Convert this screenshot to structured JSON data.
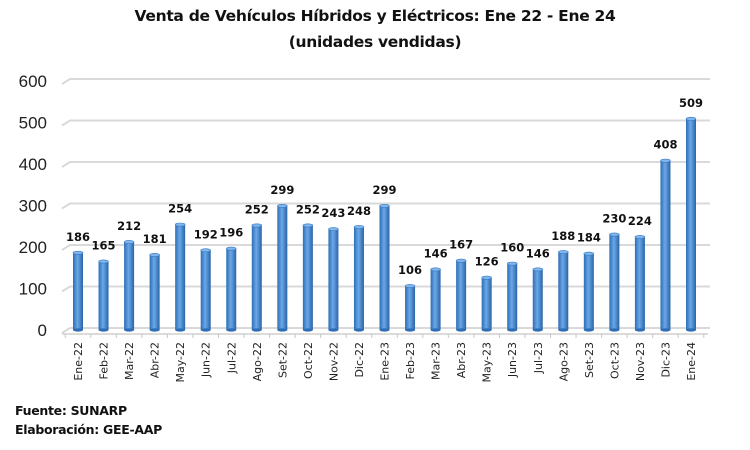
{
  "chart_data": {
    "type": "bar",
    "title": "Venta de Vehículos Híbridos y Eléctricos: Ene 22 - Ene 24",
    "subtitle": "(unidades vendidas)",
    "xlabel": "",
    "ylabel": "",
    "ylim": [
      0,
      600
    ],
    "yticks": [
      "0",
      "100",
      "200",
      "300",
      "400",
      "500",
      "600"
    ],
    "grid": true,
    "legend": "none",
    "bar_color": "#4a8fd6",
    "categories": [
      "Ene-22",
      "Feb-22",
      "Mar-22",
      "Abr-22",
      "May-22",
      "Jun-22",
      "Jul-22",
      "Ago-22",
      "Set-22",
      "Oct-22",
      "Nov-22",
      "Dic-22",
      "Ene-23",
      "Feb-23",
      "Mar-23",
      "Abr-23",
      "May-23",
      "Jun-23",
      "Jul-23",
      "Ago-23",
      "Set-23",
      "Oct-23",
      "Nov-23",
      "Dic-23",
      "Ene-24"
    ],
    "values": [
      186,
      165,
      212,
      181,
      254,
      192,
      196,
      252,
      299,
      252,
      243,
      248,
      299,
      106,
      146,
      167,
      126,
      160,
      146,
      188,
      184,
      230,
      224,
      408,
      509
    ]
  },
  "footer": {
    "source": "Fuente: SUNARP",
    "elaboration": "Elaboración: GEE-AAP"
  }
}
